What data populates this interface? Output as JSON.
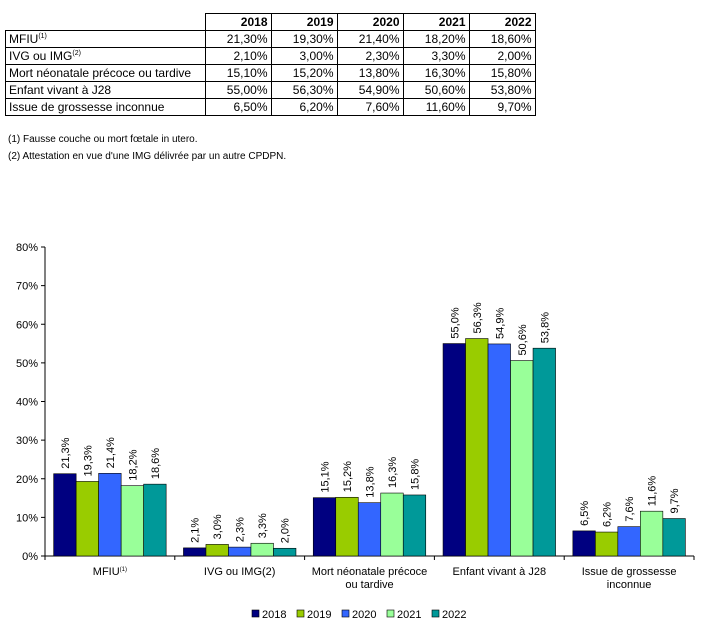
{
  "table": {
    "headers": [
      "2018",
      "2019",
      "2020",
      "2021",
      "2022"
    ],
    "rows": [
      {
        "label": "MFIU",
        "sup": "(1)",
        "values": [
          "21,30%",
          "19,30%",
          "21,40%",
          "18,20%",
          "18,60%"
        ]
      },
      {
        "label": "IVG ou IMG",
        "sup": "(2)",
        "values": [
          "2,10%",
          "3,00%",
          "2,30%",
          "3,30%",
          "2,00%"
        ]
      },
      {
        "label": "Mort néonatale précoce ou tardive",
        "sup": "",
        "values": [
          "15,10%",
          "15,20%",
          "13,80%",
          "16,30%",
          "15,80%"
        ]
      },
      {
        "label": "Enfant vivant à J28",
        "sup": "",
        "values": [
          "55,00%",
          "56,30%",
          "54,90%",
          "50,60%",
          "53,80%"
        ]
      },
      {
        "label": "Issue de grossesse inconnue",
        "sup": "",
        "values": [
          "6,50%",
          "6,20%",
          "7,60%",
          "11,60%",
          "9,70%"
        ]
      }
    ]
  },
  "notes": [
    "(1) Fausse couche ou mort fœtale in utero.",
    "(2) Attestation en vue d'une IMG délivrée par un autre CPDPN."
  ],
  "chart_data": {
    "type": "bar",
    "categories": [
      [
        "MFIU",
        "(1)"
      ],
      [
        "IVG ou IMG(2)"
      ],
      [
        "Mort néonatale précoce",
        "ou tardive"
      ],
      [
        "Enfant vivant à J28"
      ],
      [
        "Issue de grossesse",
        "inconnue"
      ]
    ],
    "series": [
      {
        "name": "2018",
        "color": "#000080",
        "values": [
          21.3,
          2.1,
          15.1,
          55.0,
          6.5
        ],
        "labels": [
          "21,3%",
          "2,1%",
          "15,1%",
          "55,0%",
          "6,5%"
        ]
      },
      {
        "name": "2019",
        "color": "#99CC00",
        "values": [
          19.3,
          3.0,
          15.2,
          56.3,
          6.2
        ],
        "labels": [
          "19,3%",
          "3,0%",
          "15,2%",
          "56,3%",
          "6,2%"
        ]
      },
      {
        "name": "2020",
        "color": "#3366FF",
        "values": [
          21.4,
          2.3,
          13.8,
          54.9,
          7.6
        ],
        "labels": [
          "21,4%",
          "2,3%",
          "13,8%",
          "54,9%",
          "7,6%"
        ]
      },
      {
        "name": "2021",
        "color": "#99FF99",
        "values": [
          18.2,
          3.3,
          16.3,
          50.6,
          11.6
        ],
        "labels": [
          "18,2%",
          "3,3%",
          "16,3%",
          "50,6%",
          "11,6%"
        ]
      },
      {
        "name": "2022",
        "color": "#009999",
        "values": [
          18.6,
          2.0,
          15.8,
          53.8,
          9.7
        ],
        "labels": [
          "18,6%",
          "2,0%",
          "15,8%",
          "53,8%",
          "9,7%"
        ]
      }
    ],
    "ylim": [
      0,
      80
    ],
    "yticks": [
      "0%",
      "10%",
      "20%",
      "30%",
      "40%",
      "50%",
      "60%",
      "70%",
      "80%"
    ],
    "ylabel": "",
    "xlabel": "",
    "grid": false,
    "legend": "bottom"
  }
}
